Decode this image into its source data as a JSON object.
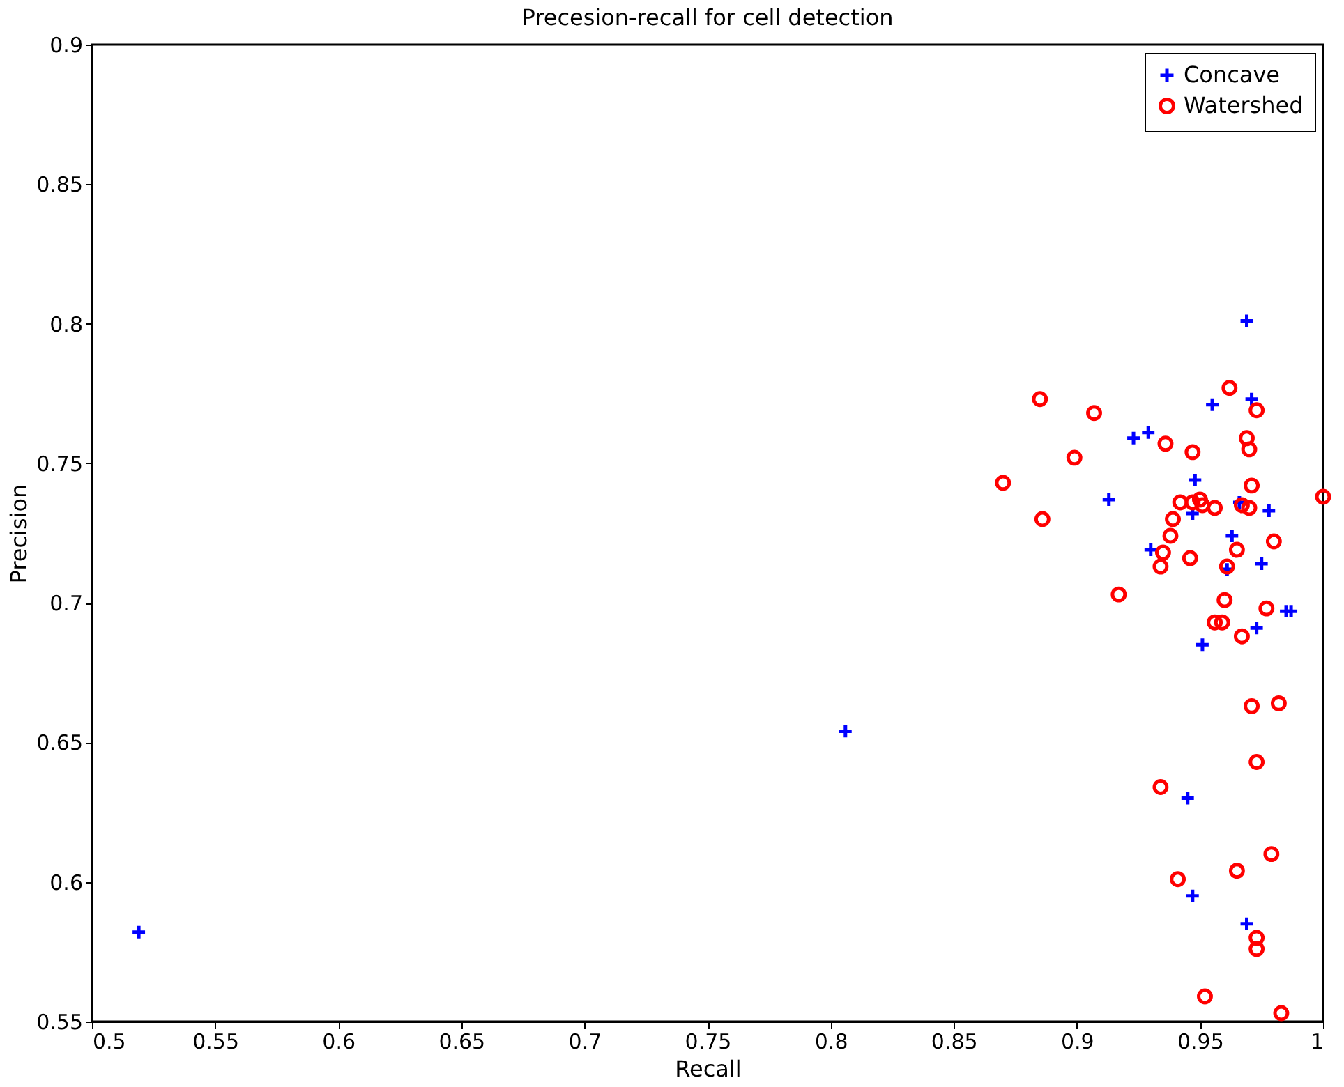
{
  "chart_data": {
    "type": "scatter",
    "title": "Precesion-recall for cell detection",
    "xlabel": "Recall",
    "ylabel": "Precision",
    "xlim": [
      0.5,
      1
    ],
    "xticks": [
      0.5,
      0.55,
      0.6,
      0.65,
      0.7,
      0.75,
      0.8,
      0.85,
      0.9,
      0.95,
      1
    ],
    "ylim": [
      0.55,
      0.9
    ],
    "yticks": [
      0.55,
      0.6,
      0.65,
      0.7,
      0.75,
      0.8,
      0.85,
      0.9
    ],
    "grid": false,
    "legend": "top right",
    "series": [
      {
        "name": "Concave",
        "color": "#0000ff",
        "marker": "cross",
        "x": [
          0.969,
          0.955,
          0.971,
          0.923,
          0.929,
          0.913,
          0.948,
          0.947,
          0.93,
          0.966,
          0.978,
          0.963,
          0.961,
          0.975,
          0.985,
          0.987,
          0.973,
          0.951,
          0.945,
          0.947,
          0.969,
          0.806,
          0.519
        ],
        "values": [
          0.801,
          0.771,
          0.773,
          0.759,
          0.761,
          0.737,
          0.744,
          0.732,
          0.719,
          0.736,
          0.733,
          0.724,
          0.712,
          0.714,
          0.697,
          0.697,
          0.691,
          0.685,
          0.63,
          0.595,
          0.585,
          0.654,
          0.582
        ]
      },
      {
        "name": "Watershed",
        "color": "#ff0000",
        "marker": "circle",
        "x": [
          0.885,
          0.907,
          0.899,
          0.87,
          0.886,
          0.917,
          0.962,
          0.973,
          0.969,
          0.97,
          0.936,
          0.947,
          0.971,
          1.0,
          0.942,
          0.947,
          0.95,
          0.951,
          0.956,
          0.967,
          0.97,
          0.939,
          0.938,
          0.935,
          0.934,
          0.946,
          0.965,
          0.98,
          0.961,
          0.96,
          0.956,
          0.959,
          0.977,
          0.967,
          0.971,
          0.982,
          0.973,
          0.934,
          0.979,
          0.965,
          0.941,
          0.973,
          0.973,
          0.952,
          0.983
        ],
        "values": [
          0.773,
          0.768,
          0.752,
          0.743,
          0.73,
          0.703,
          0.777,
          0.769,
          0.759,
          0.755,
          0.757,
          0.754,
          0.742,
          0.738,
          0.736,
          0.736,
          0.737,
          0.735,
          0.734,
          0.735,
          0.734,
          0.73,
          0.724,
          0.718,
          0.713,
          0.716,
          0.719,
          0.722,
          0.713,
          0.701,
          0.693,
          0.693,
          0.698,
          0.688,
          0.663,
          0.664,
          0.643,
          0.634,
          0.61,
          0.604,
          0.601,
          0.58,
          0.576,
          0.559,
          0.553
        ]
      }
    ]
  }
}
